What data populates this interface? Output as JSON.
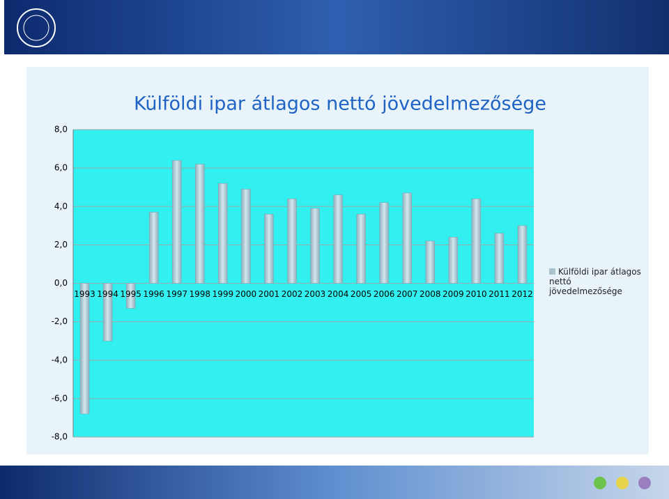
{
  "chart_data": {
    "type": "bar",
    "title": "Külföldi ipar átlagos nettó jövedelmezősége",
    "categories": [
      "1993",
      "1994",
      "1995",
      "1996",
      "1997",
      "1998",
      "1999",
      "2000",
      "2001",
      "2002",
      "2003",
      "2004",
      "2005",
      "2006",
      "2007",
      "2008",
      "2009",
      "2010",
      "2011",
      "2012"
    ],
    "series": [
      {
        "name": "Külföldi ipar átlagos nettó jövedelmezősége",
        "color": "#a9c4cf",
        "values": [
          -6.8,
          -3.0,
          -1.3,
          3.7,
          6.4,
          6.2,
          5.2,
          4.9,
          3.6,
          4.4,
          3.9,
          4.6,
          3.6,
          4.2,
          4.7,
          2.2,
          2.4,
          4.4,
          2.6,
          3.0
        ]
      }
    ],
    "ylim": [
      -8,
      8
    ],
    "yticks": [
      {
        "value": -8,
        "label": "-8,0"
      },
      {
        "value": -6,
        "label": "-6,0"
      },
      {
        "value": -4,
        "label": "-4,0"
      },
      {
        "value": -2,
        "label": "-2,0"
      },
      {
        "value": 0,
        "label": "0,0"
      },
      {
        "value": 2,
        "label": "2,0"
      },
      {
        "value": 4,
        "label": "4,0"
      },
      {
        "value": 6,
        "label": "6,0"
      },
      {
        "value": 8,
        "label": "8,0"
      }
    ],
    "grid": true,
    "legend": "right"
  }
}
